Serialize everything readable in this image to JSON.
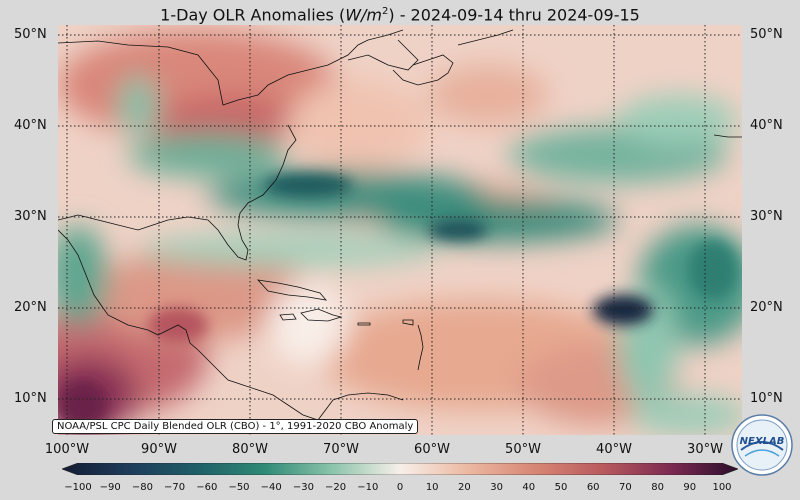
{
  "title": {
    "prefix": "1-Day OLR Anomalies (",
    "unit": "W/m",
    "unit_exp": "2",
    "suffix": ") - 2024-09-14 thru 2024-09-15"
  },
  "source_note": "NOAA/PSL CPC Daily Blended OLR (CBO) - 1°, 1991-2020 CBO Anomaly",
  "lat_labels": [
    "50°N",
    "40°N",
    "30°N",
    "20°N",
    "10°N"
  ],
  "lon_labels": [
    "100°W",
    "90°W",
    "80°W",
    "70°W",
    "60°W",
    "50°W",
    "40°W",
    "30°W"
  ],
  "colorbar": {
    "ticks": [
      "−100",
      "−90",
      "−80",
      "−70",
      "−60",
      "−50",
      "−40",
      "−30",
      "−20",
      "−10",
      "0",
      "10",
      "20",
      "30",
      "40",
      "50",
      "60",
      "70",
      "80",
      "90",
      "100"
    ],
    "min": -100,
    "max": 100
  },
  "logo_text": "NEXLAB",
  "colors": {
    "strong_negative": "#1f2e4d",
    "negative": "#2f8a76",
    "weak_negative": "#b8dcc9",
    "neutral": "#f7efe9",
    "positive": "#e6a08c",
    "strong_positive": "#b85a5e",
    "extreme_positive": "#6b2047"
  }
}
